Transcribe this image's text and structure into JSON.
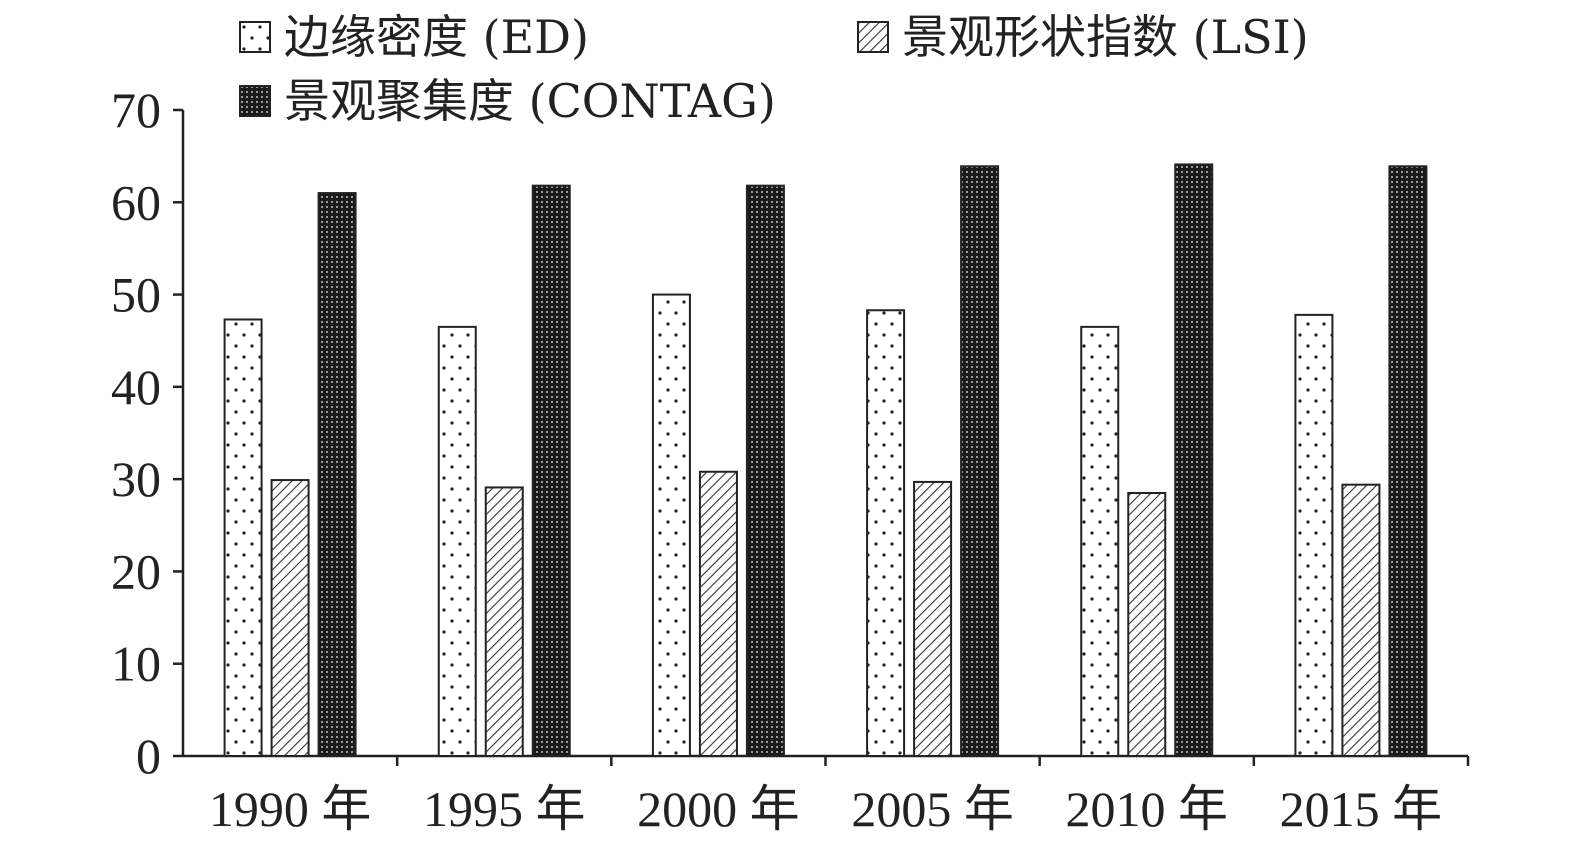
{
  "chart_data": {
    "type": "bar",
    "title": "",
    "xlabel": "",
    "ylabel": "",
    "categories": [
      "1990 年",
      "1995 年",
      "2000 年",
      "2005 年",
      "2010 年",
      "2015 年"
    ],
    "ylim": [
      0,
      70
    ],
    "yticks": [
      0,
      10,
      20,
      30,
      40,
      50,
      60,
      70
    ],
    "grid": false,
    "legend_position": "top",
    "series": [
      {
        "name": "边缘密度 (ED)",
        "pattern": "dots",
        "values": [
          47.3,
          46.5,
          50.0,
          48.3,
          46.5,
          47.8
        ]
      },
      {
        "name": "景观形状指数 (LSI)",
        "pattern": "hatch",
        "values": [
          29.9,
          29.1,
          30.8,
          29.7,
          28.5,
          29.4
        ]
      },
      {
        "name": "景观聚集度 (CONTAG)",
        "pattern": "dense",
        "values": [
          61.0,
          61.8,
          61.8,
          63.9,
          64.1,
          63.9
        ]
      }
    ]
  }
}
